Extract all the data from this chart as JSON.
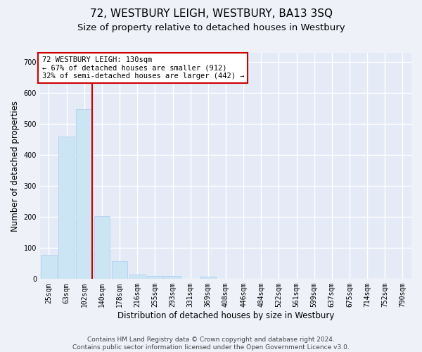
{
  "title": "72, WESTBURY LEIGH, WESTBURY, BA13 3SQ",
  "subtitle": "Size of property relative to detached houses in Westbury",
  "xlabel": "Distribution of detached houses by size in Westbury",
  "ylabel": "Number of detached properties",
  "bar_values": [
    78,
    460,
    548,
    203,
    57,
    15,
    10,
    10,
    0,
    8,
    0,
    0,
    0,
    0,
    0,
    0,
    0,
    0,
    0,
    0,
    0
  ],
  "bar_labels": [
    "25sqm",
    "63sqm",
    "102sqm",
    "140sqm",
    "178sqm",
    "216sqm",
    "255sqm",
    "293sqm",
    "331sqm",
    "369sqm",
    "408sqm",
    "446sqm",
    "484sqm",
    "522sqm",
    "561sqm",
    "599sqm",
    "637sqm",
    "675sqm",
    "714sqm",
    "752sqm",
    "790sqm"
  ],
  "bar_color": "#cce5f5",
  "bar_edge_color": "#aaccee",
  "vline_color": "#cc0000",
  "annotation_box_text": "72 WESTBURY LEIGH: 130sqm\n← 67% of detached houses are smaller (912)\n32% of semi-detached houses are larger (442) →",
  "annotation_box_color": "#cc0000",
  "ylim": [
    0,
    730
  ],
  "yticks": [
    0,
    100,
    200,
    300,
    400,
    500,
    600,
    700
  ],
  "footer_line1": "Contains HM Land Registry data © Crown copyright and database right 2024.",
  "footer_line2": "Contains public sector information licensed under the Open Government Licence v3.0.",
  "bg_color": "#eef2f8",
  "plot_bg_color": "#e4eaf6",
  "grid_color": "#ffffff",
  "title_fontsize": 11,
  "subtitle_fontsize": 9.5,
  "label_fontsize": 8.5,
  "tick_fontsize": 7,
  "annotation_fontsize": 7.5,
  "footer_fontsize": 6.5
}
